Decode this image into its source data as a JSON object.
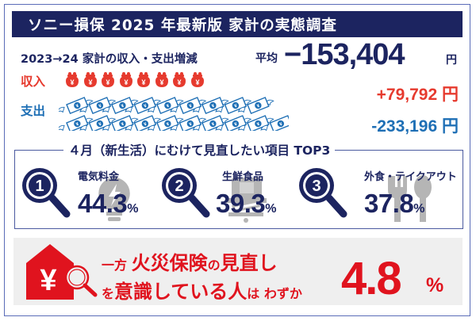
{
  "header": {
    "title": "ソニー損保 2025 年最新版 家計の実態調査"
  },
  "summary": {
    "headline": "2023→24 家計の収入・支出増減",
    "average_label": "平均",
    "average_value": "−153,404",
    "currency_unit": "円"
  },
  "income": {
    "label": "収入",
    "value": "+79,792",
    "unit": "円",
    "icon": "purse-yen-icon",
    "icon_count": 8,
    "color": "#e63a2e"
  },
  "expense": {
    "label": "支出",
    "value": "-233,196",
    "unit": "円",
    "icon": "flying-banknote-icon",
    "icon_count_row1": 9,
    "icon_count_row2": 10,
    "color": "#1e6fb5"
  },
  "top3": {
    "title": "４月（新生活）にむけて見直したい項目 TOP3",
    "items": [
      {
        "rank": "1",
        "category": "電気料金",
        "percent": "44.3",
        "unit": "%",
        "icon": "lightning-bulb-icon"
      },
      {
        "rank": "2",
        "category": "生鮮食品",
        "percent": "39.3",
        "unit": "%",
        "icon": "shopping-cart-icon"
      },
      {
        "rank": "3",
        "category": "外食・テイクアウト",
        "percent": "37.8",
        "unit": "%",
        "icon": "fork-spoon-icon"
      }
    ]
  },
  "fire_insurance": {
    "prefix": "一方",
    "highlight1": "火災保険",
    "particle": "の",
    "highlight2": "見直し",
    "line2_prefix": "を",
    "line2_highlight": "意識している人",
    "line2_particle": "は",
    "line2_suffix": "わずか",
    "percent": "4.8",
    "unit": "%",
    "icon": "house-yen-magnifier-icon",
    "color": "#e0131e"
  },
  "colors": {
    "navy": "#1c2460",
    "frame_border": "#5a6cb8",
    "panel_bg": "#efefef",
    "icon_gray": "#b5b5b5"
  }
}
